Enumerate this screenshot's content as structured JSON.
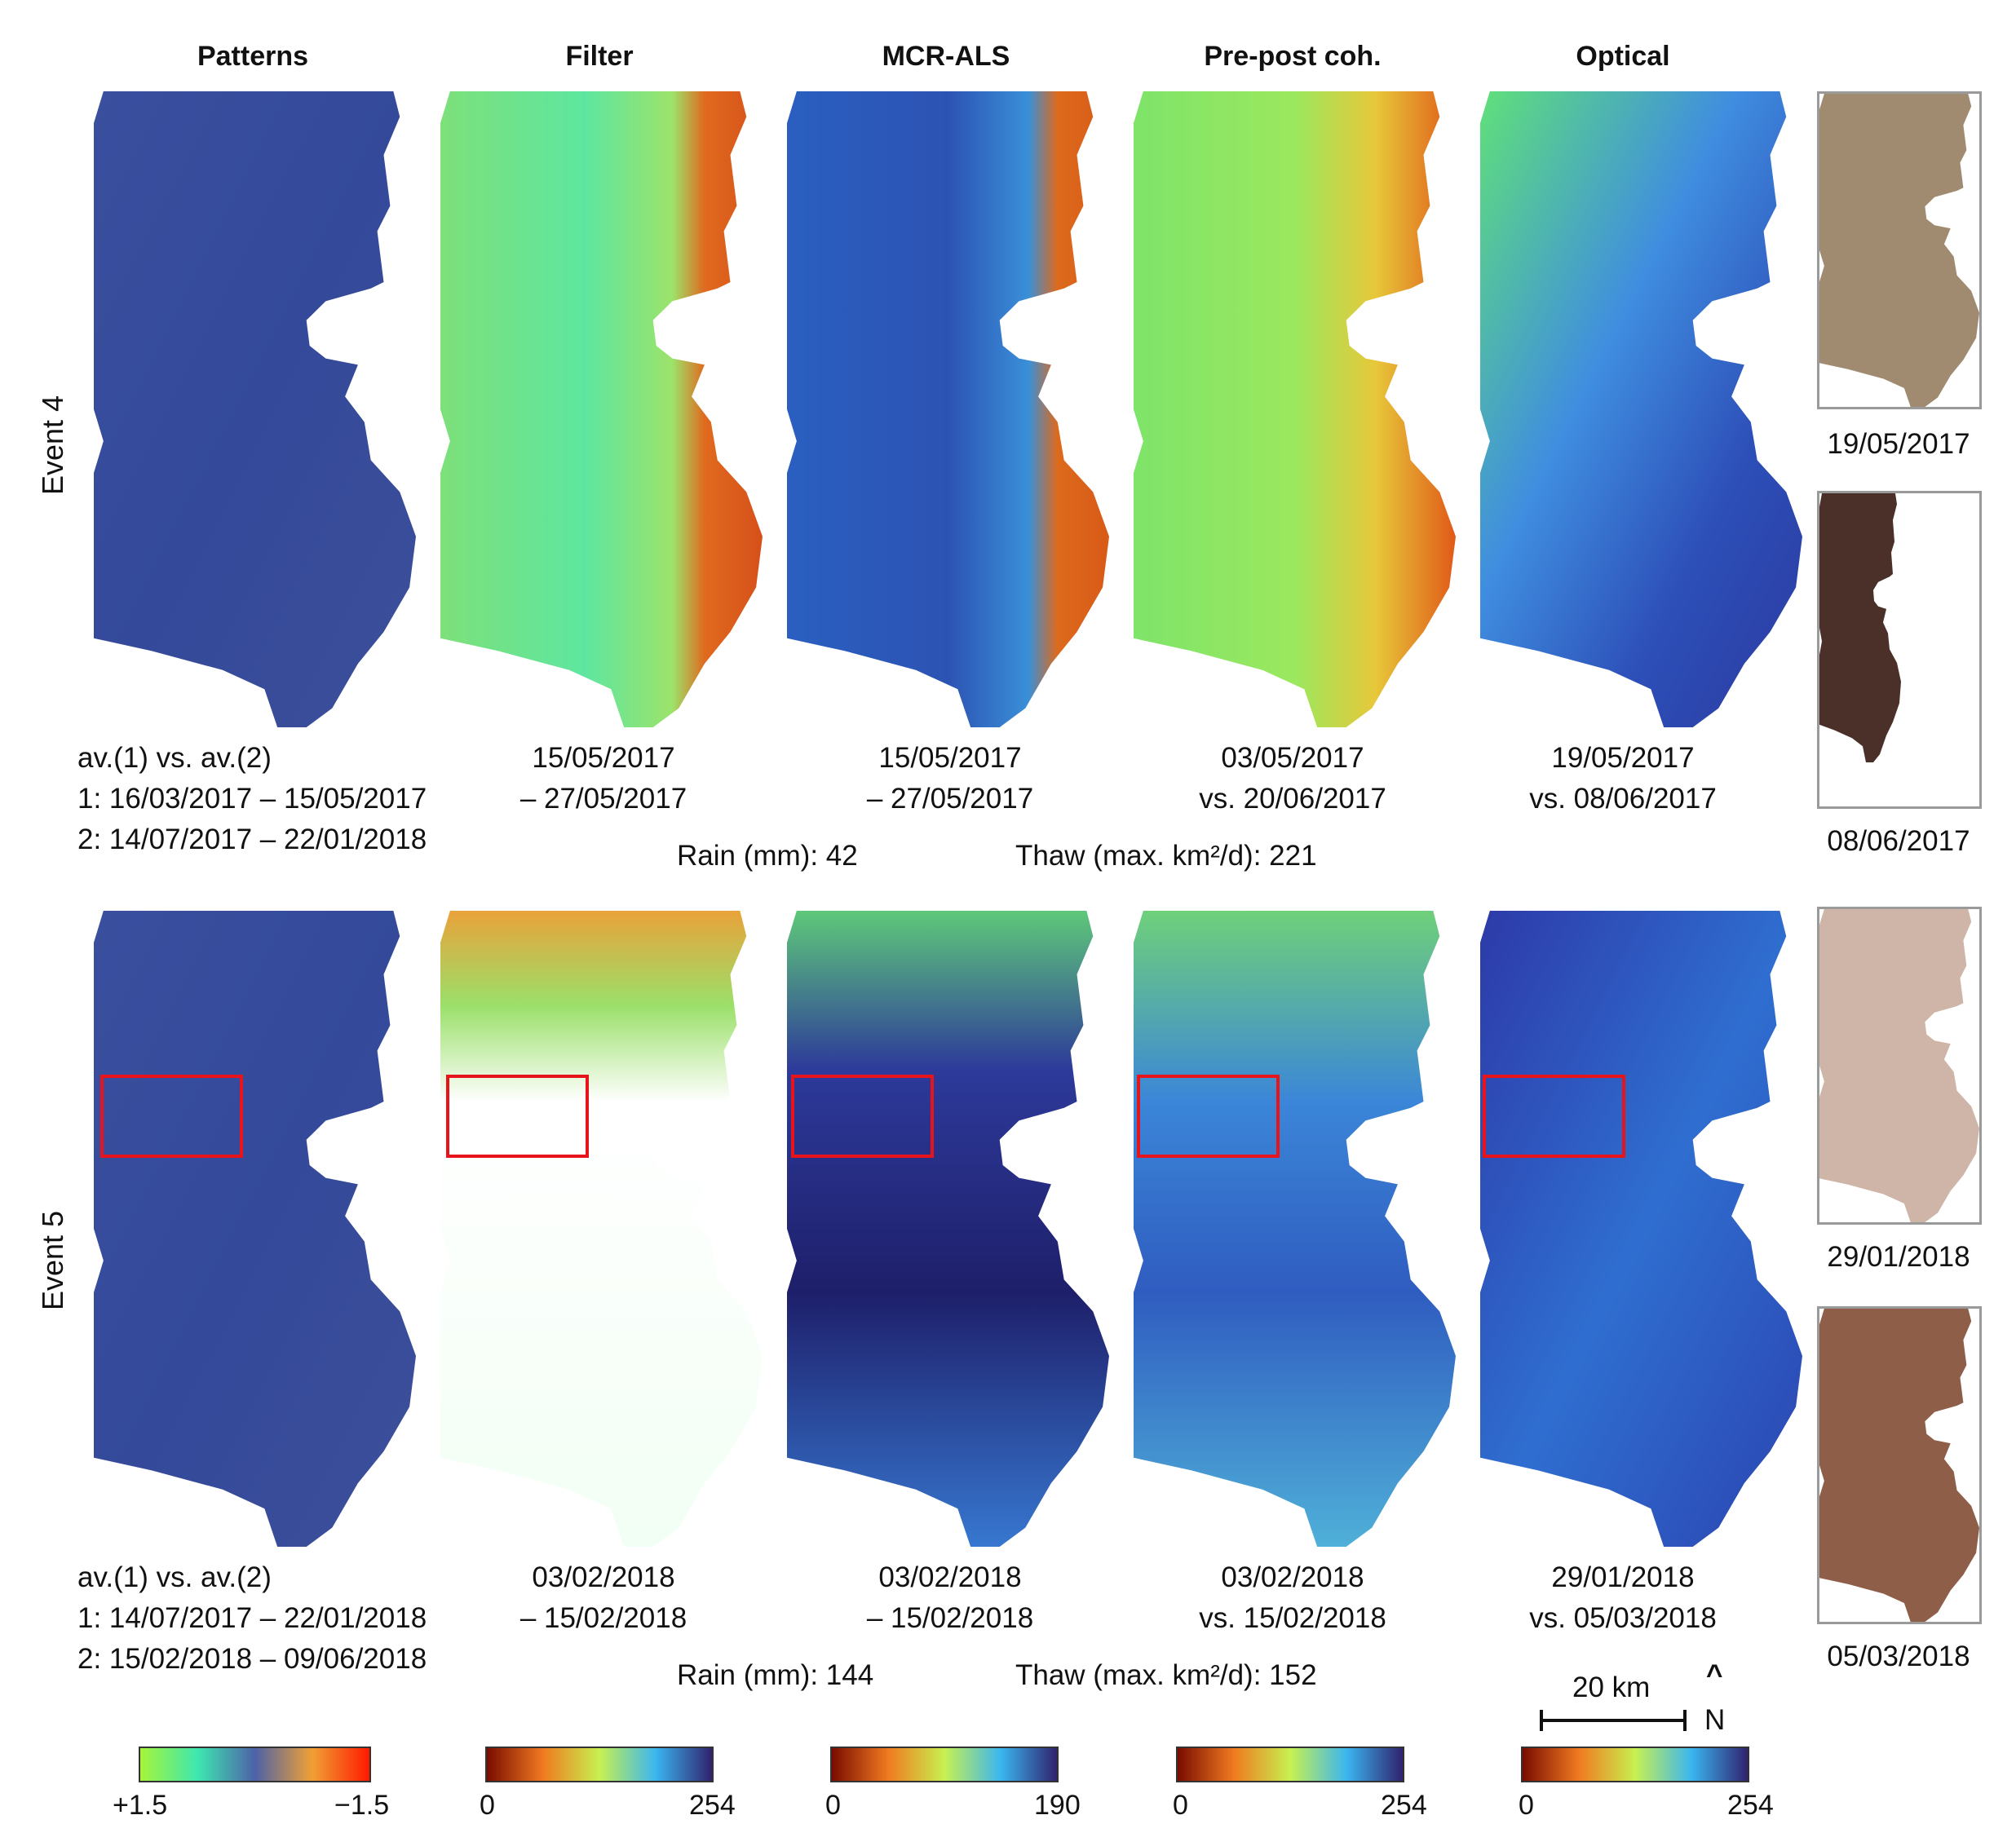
{
  "columns": [
    "Patterns",
    "Filter",
    "MCR-ALS",
    "Pre-post coh.",
    "Optical"
  ],
  "rows": [
    {
      "label": "Event 4",
      "captions": {
        "patterns": [
          "av.(1) vs. av.(2)",
          "1: 16/03/2017 – 15/05/2017",
          "2: 14/07/2017 – 22/01/2018"
        ],
        "filter": [
          "15/05/2017",
          "– 27/05/2017"
        ],
        "mcr": [
          "15/05/2017",
          "– 27/05/2017"
        ],
        "coh": [
          "03/05/2017",
          "vs. 20/06/2017"
        ],
        "optical": [
          "19/05/2017",
          "vs. 08/06/2017"
        ]
      },
      "rain": "Rain (mm): 42",
      "thaw": "Thaw (max. km²/d): 221",
      "thumb_dates": [
        "19/05/2017",
        "08/06/2017"
      ]
    },
    {
      "label": "Event 5",
      "captions": {
        "patterns": [
          "av.(1) vs. av.(2)",
          "1: 14/07/2017 – 22/01/2018",
          "2: 15/02/2018 – 09/06/2018"
        ],
        "filter": [
          "03/02/2018",
          "– 15/02/2018"
        ],
        "mcr": [
          "03/02/2018",
          "– 15/02/2018"
        ],
        "coh": [
          "03/02/2018",
          "vs. 15/02/2018"
        ],
        "optical": [
          "29/01/2018",
          "vs. 05/03/2018"
        ]
      },
      "rain": "Rain (mm): 144",
      "thaw": "Thaw (max. km²/d): 152",
      "thumb_dates": [
        "29/01/2018",
        "05/03/2018"
      ]
    }
  ],
  "scalebar": {
    "label": "20 km",
    "north_arrow": "^",
    "north_label": "N"
  },
  "colorbars": [
    {
      "min": "+1.5",
      "max": "−1.5"
    },
    {
      "min": "0",
      "max": "254"
    },
    {
      "min": "0",
      "max": "190"
    },
    {
      "min": "0",
      "max": "254"
    },
    {
      "min": "0",
      "max": "254"
    }
  ],
  "colors": {
    "highlight_box": "#e8141c",
    "frame": "#9a9a9a"
  }
}
